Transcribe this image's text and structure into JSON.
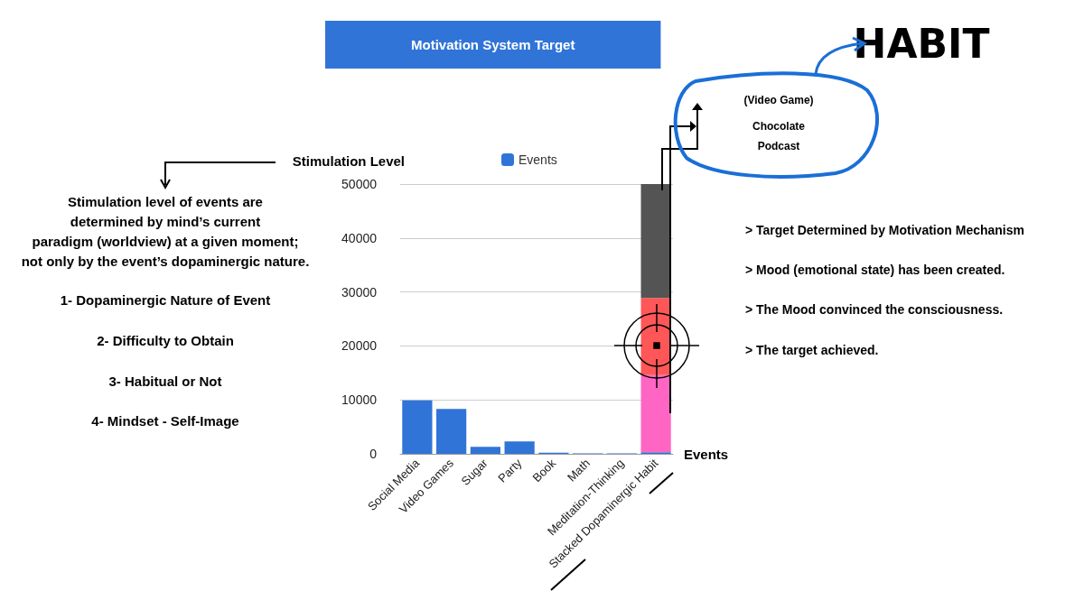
{
  "chart_data": {
    "type": "bar",
    "title": "Motivation System Target",
    "xlabel": "Events",
    "ylabel": "Stimulation Level",
    "categories": [
      "Social Media",
      "Video Games",
      "Sugar",
      "Party",
      "Book",
      "Math",
      "Meditation-Thinking",
      "Stacked Dopaminergic Habit"
    ],
    "stacked": true,
    "series": [
      {
        "name": "Events",
        "color": "#3174d8",
        "values": [
          9900,
          8300,
          1300,
          2300,
          200,
          100,
          100,
          300
        ]
      },
      {
        "color": "#ff66c4",
        "values": [
          null,
          null,
          null,
          null,
          null,
          null,
          null,
          14300
        ]
      },
      {
        "color": "#ff5757",
        "values": [
          null,
          null,
          null,
          null,
          null,
          null,
          null,
          14300
        ]
      },
      {
        "color": "#545454",
        "values": [
          null,
          null,
          null,
          null,
          null,
          null,
          null,
          21100
        ]
      }
    ],
    "ylim": [
      0,
      50000
    ],
    "yticks": [
      0,
      10000,
      20000,
      30000,
      40000,
      50000
    ],
    "grid": "y",
    "legend": "top",
    "annotations": [
      "Stimulation level of events are\ndetermined by mind’s current\nparadigm (worldview) at a given moment;\nnot only by the event’s dopaminergic nature.",
      "1- Dopaminergic Nature of Event",
      "2- Difficulty to Obtain",
      "3- Habitual or Not",
      "4- Mindset - Self-Image",
      "> Target Determined by Motivation Mechanism",
      "> Mood (emotional state) has been created.",
      "> The Mood convinced the consciousness.",
      "> The target achieved.",
      "(Video Game)",
      "Chocolate",
      "Podcast",
      "HABIT"
    ]
  }
}
